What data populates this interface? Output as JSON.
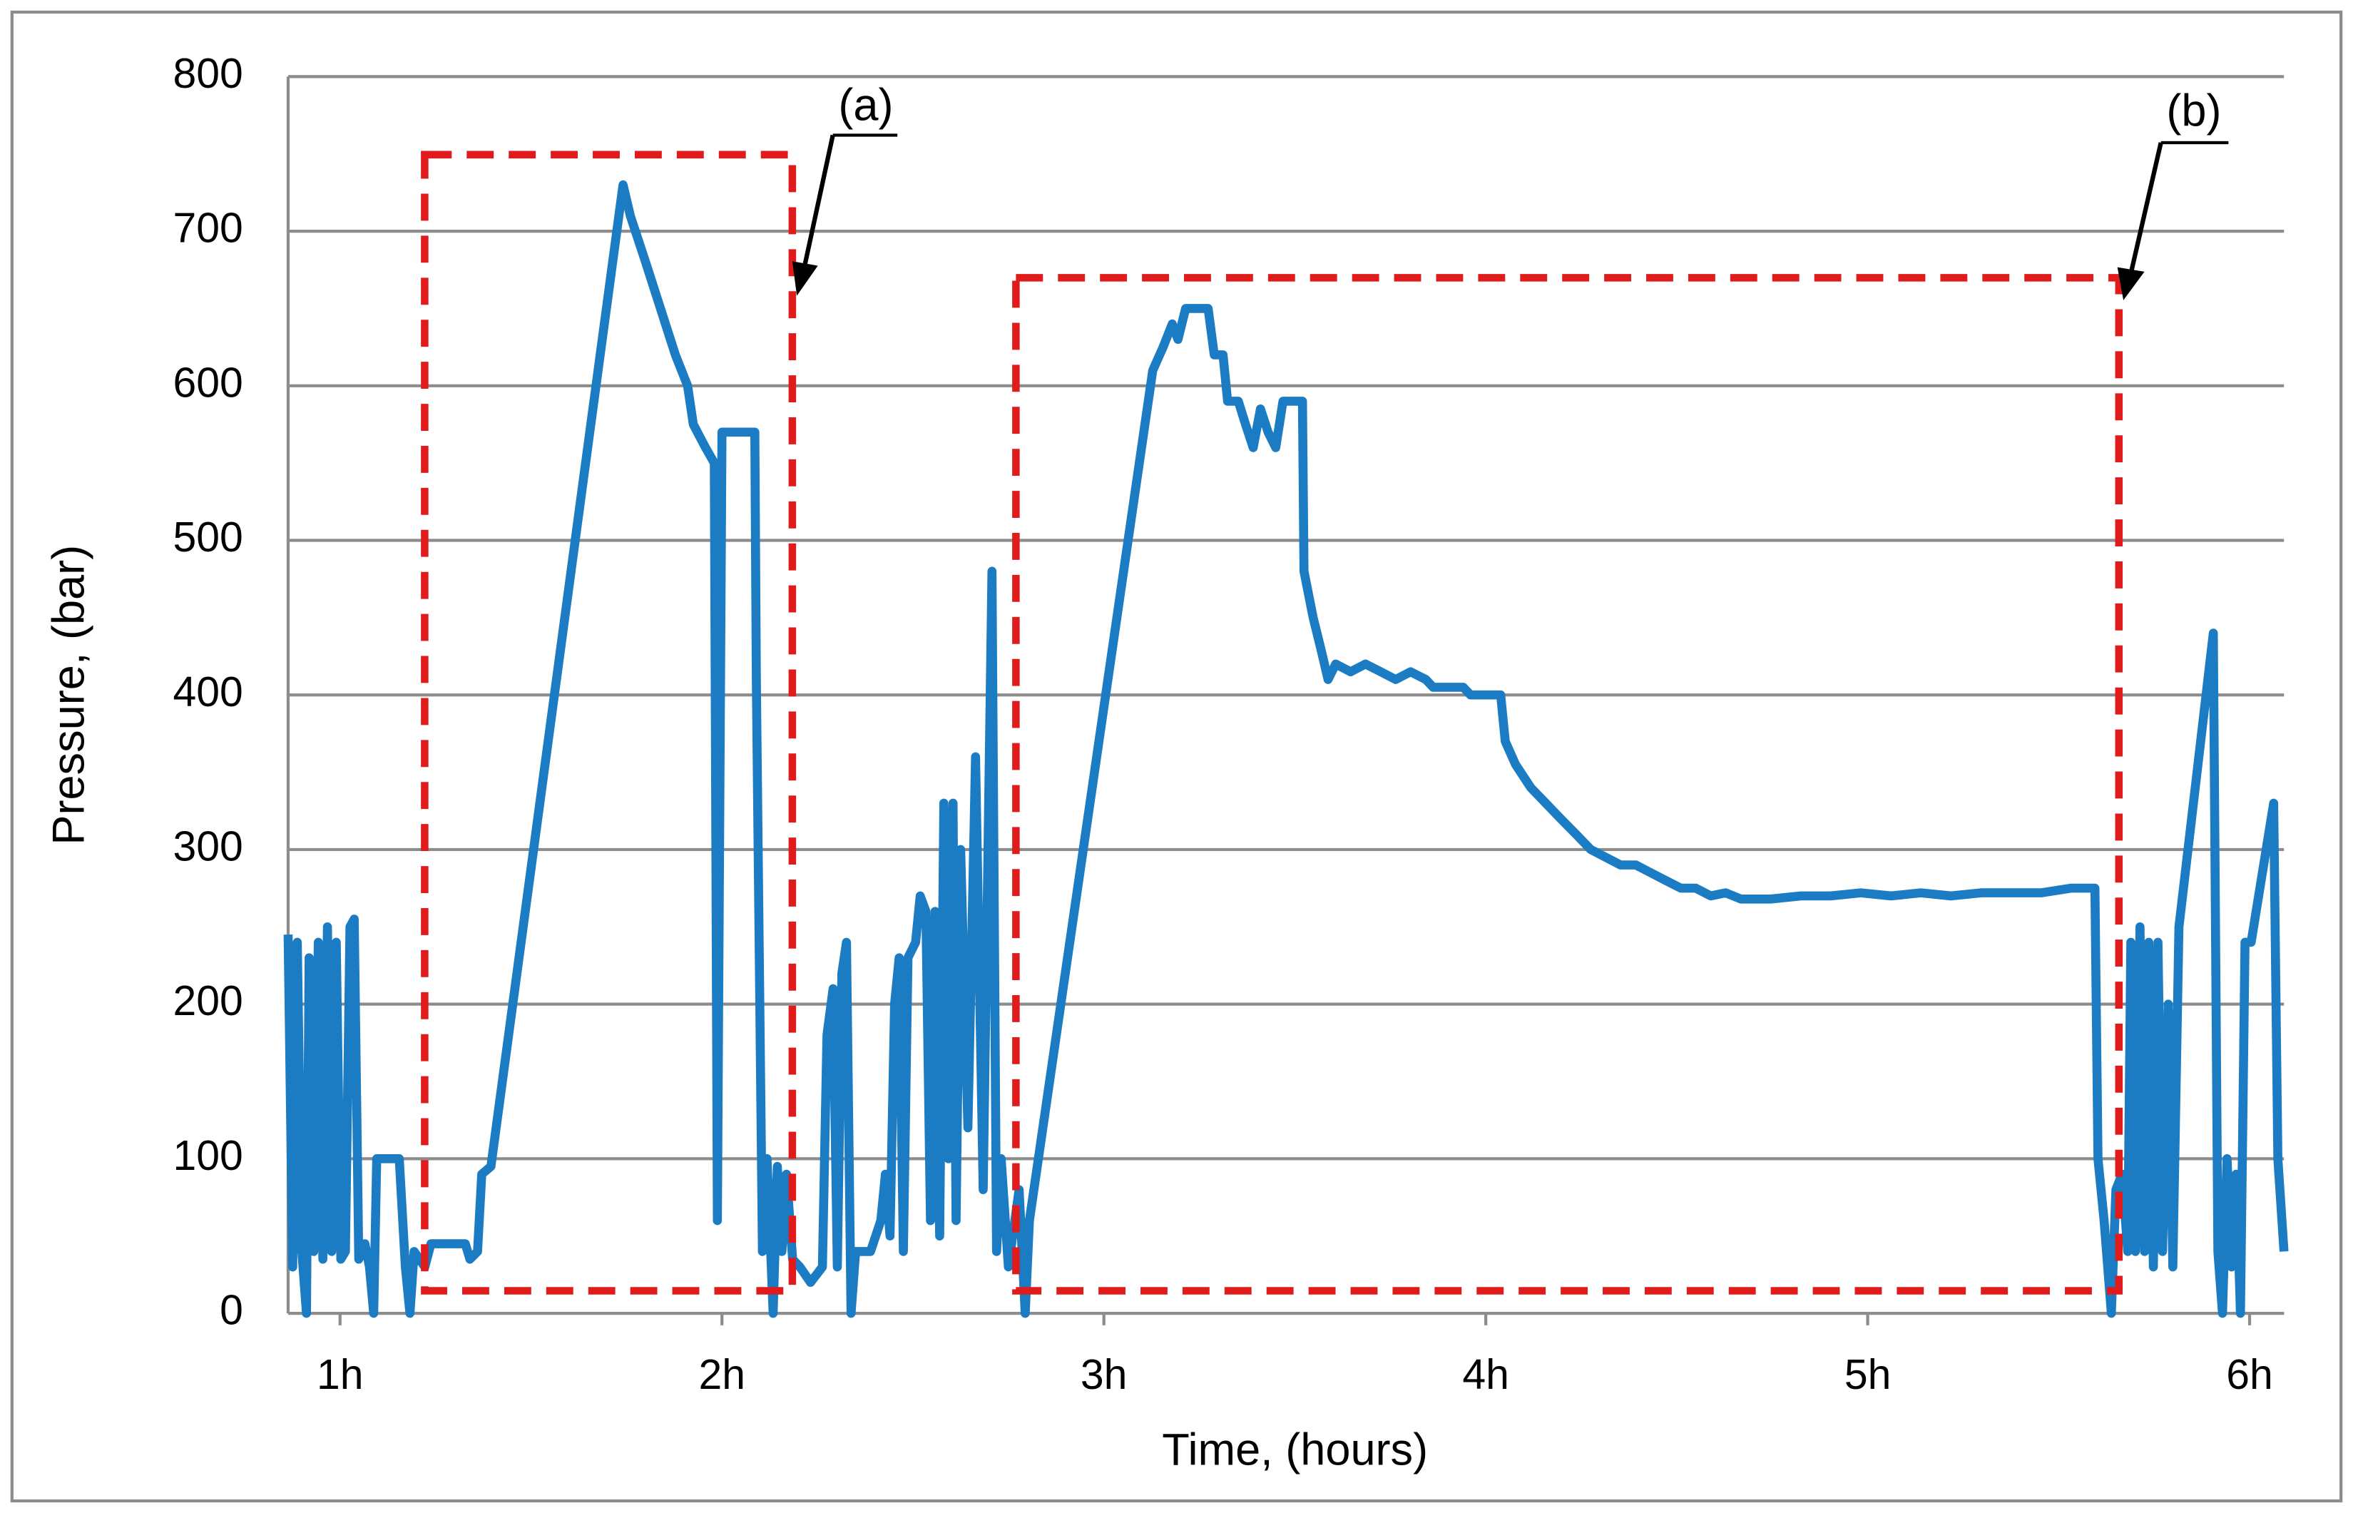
{
  "chart_data": {
    "type": "line",
    "xlabel": "Time, (hours)",
    "ylabel": "Pressure, (bar)",
    "color": "#1b7cc3",
    "grid": true,
    "xlim": [
      0.864,
      6.09
    ],
    "ylim": [
      0,
      800
    ],
    "xticks": [
      {
        "value": 1,
        "label": "1h"
      },
      {
        "value": 2,
        "label": "2h"
      },
      {
        "value": 3,
        "label": "3h"
      },
      {
        "value": 4,
        "label": "4h"
      },
      {
        "value": 5,
        "label": "5h"
      },
      {
        "value": 6,
        "label": "6h"
      }
    ],
    "yticks": [
      0,
      100,
      200,
      300,
      400,
      500,
      600,
      700,
      800
    ],
    "annotations": [
      "(a)",
      "(b)"
    ],
    "x": [
      0.864,
      0.876,
      0.888,
      0.9,
      0.912,
      0.919,
      0.931,
      0.943,
      0.955,
      0.967,
      0.978,
      0.99,
      1.002,
      1.014,
      1.026,
      1.037,
      1.049,
      1.065,
      1.077,
      1.088,
      1.096,
      1.143,
      1.155,
      1.171,
      1.183,
      1.194,
      1.222,
      1.238,
      1.328,
      1.34,
      1.36,
      1.371,
      1.395,
      1.741,
      1.76,
      1.8,
      1.839,
      1.878,
      1.91,
      1.925,
      1.957,
      1.98,
      1.988,
      2.0,
      2.086,
      2.09,
      2.106,
      2.118,
      2.134,
      2.145,
      2.157,
      2.169,
      2.185,
      2.204,
      2.232,
      2.263,
      2.275,
      2.291,
      2.302,
      2.314,
      2.326,
      2.338,
      2.35,
      2.389,
      2.416,
      2.428,
      2.44,
      2.452,
      2.464,
      2.475,
      2.487,
      2.507,
      2.519,
      2.534,
      2.546,
      2.558,
      2.57,
      2.581,
      2.593,
      2.605,
      2.613,
      2.625,
      2.644,
      2.664,
      2.684,
      2.707,
      2.719,
      2.731,
      2.75,
      2.778,
      2.794,
      2.805,
      3.128,
      3.155,
      3.179,
      3.194,
      3.214,
      3.234,
      3.273,
      3.289,
      3.312,
      3.324,
      3.352,
      3.371,
      3.391,
      3.41,
      3.43,
      3.45,
      3.469,
      3.52,
      3.524,
      3.548,
      3.568,
      3.587,
      3.607,
      3.646,
      3.685,
      3.725,
      3.764,
      3.803,
      3.843,
      3.862,
      3.941,
      3.96,
      4.039,
      4.051,
      4.078,
      4.118,
      4.157,
      4.196,
      4.236,
      4.275,
      4.314,
      4.353,
      4.393,
      4.432,
      4.471,
      4.511,
      4.55,
      4.589,
      4.628,
      4.668,
      4.707,
      4.746,
      4.825,
      4.903,
      4.982,
      5.061,
      5.139,
      5.218,
      5.297,
      5.375,
      5.454,
      5.532,
      5.595,
      5.603,
      5.619,
      5.638,
      5.65,
      5.666,
      5.681,
      5.689,
      5.701,
      5.713,
      5.725,
      5.736,
      5.748,
      5.76,
      5.772,
      5.787,
      5.799,
      5.815,
      5.905,
      5.917,
      5.929,
      5.941,
      5.953,
      5.965,
      5.976,
      5.988,
      6.004,
      6.063,
      6.074,
      6.09
    ],
    "values": [
      245,
      30,
      240,
      40,
      0,
      230,
      40,
      240,
      35,
      250,
      40,
      240,
      35,
      40,
      250,
      255,
      35,
      45,
      30,
      0,
      100,
      100,
      100,
      30,
      0,
      40,
      30,
      45,
      45,
      35,
      40,
      90,
      95,
      730,
      710,
      680,
      650,
      620,
      600,
      575,
      560,
      550,
      60,
      570,
      570,
      410,
      40,
      100,
      0,
      95,
      40,
      90,
      35,
      30,
      20,
      30,
      180,
      210,
      30,
      220,
      240,
      0,
      40,
      40,
      60,
      90,
      50,
      200,
      230,
      40,
      230,
      240,
      270,
      260,
      60,
      260,
      50,
      330,
      100,
      330,
      60,
      300,
      120,
      360,
      80,
      480,
      40,
      100,
      30,
      80,
      0,
      60,
      610,
      625,
      640,
      630,
      650,
      650,
      650,
      620,
      620,
      590,
      590,
      575,
      560,
      585,
      570,
      560,
      590,
      590,
      480,
      450,
      430,
      410,
      420,
      415,
      420,
      415,
      410,
      415,
      410,
      405,
      405,
      400,
      400,
      370,
      355,
      340,
      330,
      320,
      310,
      300,
      295,
      290,
      290,
      285,
      280,
      275,
      275,
      270,
      272,
      268,
      268,
      268,
      270,
      270,
      272,
      270,
      272,
      270,
      272,
      272,
      272,
      275,
      275,
      100,
      60,
      0,
      80,
      90,
      40,
      240,
      40,
      250,
      40,
      240,
      30,
      240,
      40,
      200,
      30,
      250,
      440,
      40,
      0,
      100,
      30,
      90,
      0,
      240,
      240,
      330,
      100,
      40
    ]
  }
}
